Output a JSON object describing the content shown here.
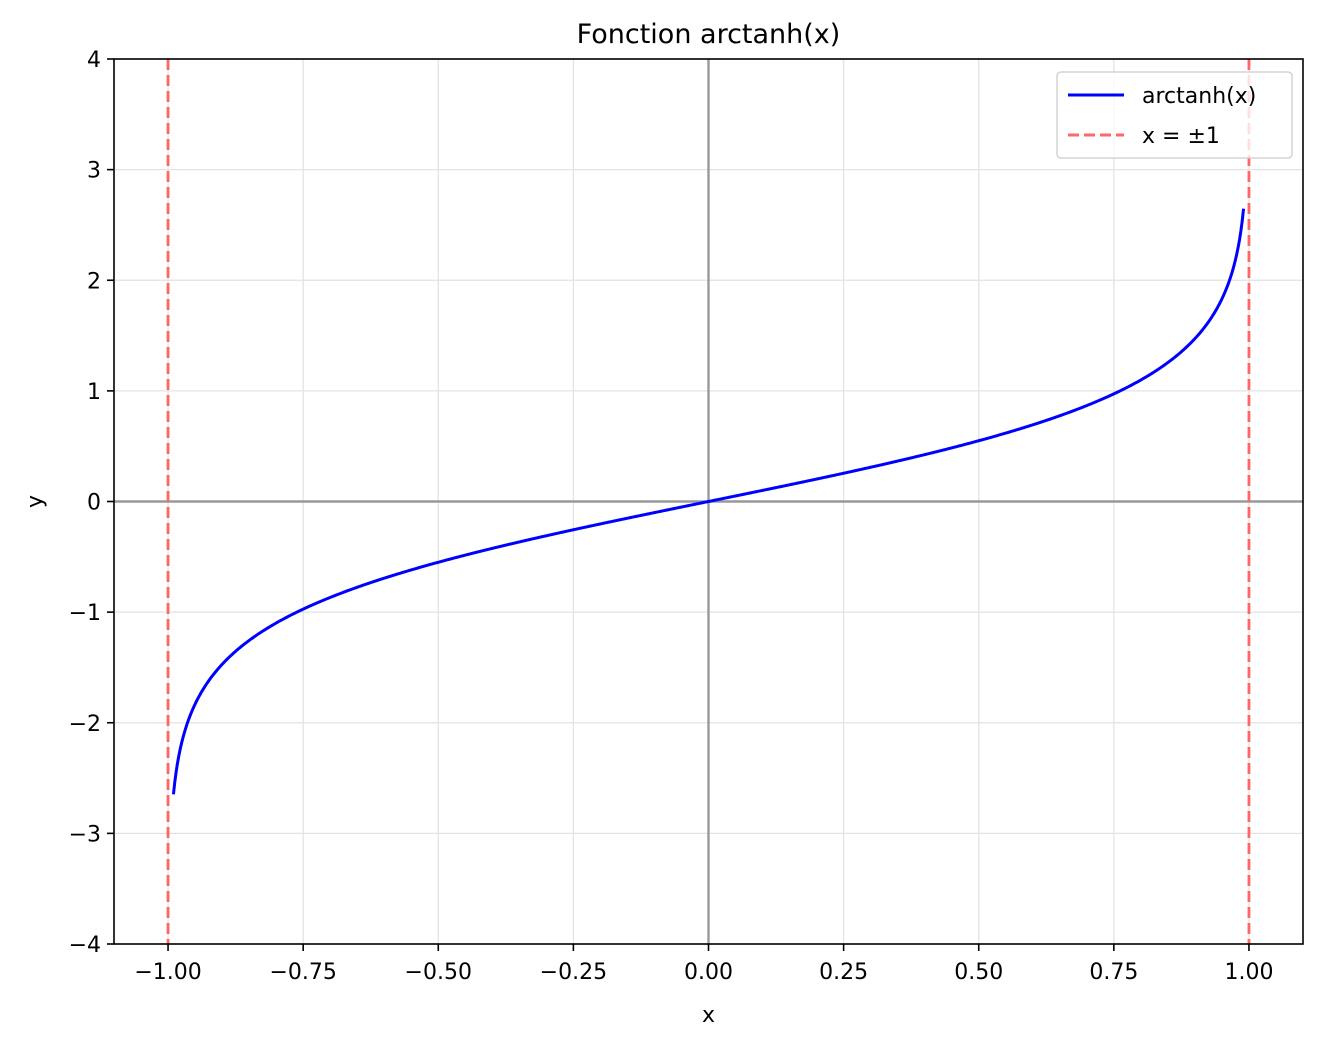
{
  "chart_data": {
    "type": "line",
    "title": "Fonction arctanh(x)",
    "xlabel": "x",
    "ylabel": "y",
    "xlim": [
      -1.1,
      1.1
    ],
    "ylim": [
      -4,
      4
    ],
    "grid": true,
    "legend_position": "top-right",
    "x_ticks": [
      -1.0,
      -0.75,
      -0.5,
      -0.25,
      0.0,
      0.25,
      0.5,
      0.75,
      1.0
    ],
    "x_tick_labels": [
      "−1.00",
      "−0.75",
      "−0.50",
      "−0.25",
      "0.00",
      "0.25",
      "0.50",
      "0.75",
      "1.00"
    ],
    "y_ticks": [
      -4,
      -3,
      -2,
      -1,
      0,
      1,
      2,
      3,
      4
    ],
    "y_tick_labels": [
      "−4",
      "−3",
      "−2",
      "−1",
      "0",
      "1",
      "2",
      "3",
      "4"
    ],
    "reference_lines": {
      "horizontal": 0,
      "vertical": 0,
      "color": "#999999"
    },
    "series": [
      {
        "name": "arctanh(x)",
        "function": "arctanh",
        "x_range": [
          -0.99,
          0.99
        ],
        "color": "#0000ff",
        "style": "solid",
        "sample_points": [
          {
            "x": -0.99,
            "y": -2.647
          },
          {
            "x": -0.9,
            "y": -1.472
          },
          {
            "x": -0.75,
            "y": -0.973
          },
          {
            "x": -0.5,
            "y": -0.549
          },
          {
            "x": -0.25,
            "y": -0.255
          },
          {
            "x": 0.0,
            "y": 0.0
          },
          {
            "x": 0.25,
            "y": 0.255
          },
          {
            "x": 0.5,
            "y": 0.549
          },
          {
            "x": 0.75,
            "y": 0.973
          },
          {
            "x": 0.9,
            "y": 1.472
          },
          {
            "x": 0.99,
            "y": 2.647
          }
        ]
      },
      {
        "name": "x = ±1",
        "type": "vline",
        "x_values": [
          -1,
          1
        ],
        "color": "#ff6666",
        "style": "dashed"
      }
    ]
  }
}
